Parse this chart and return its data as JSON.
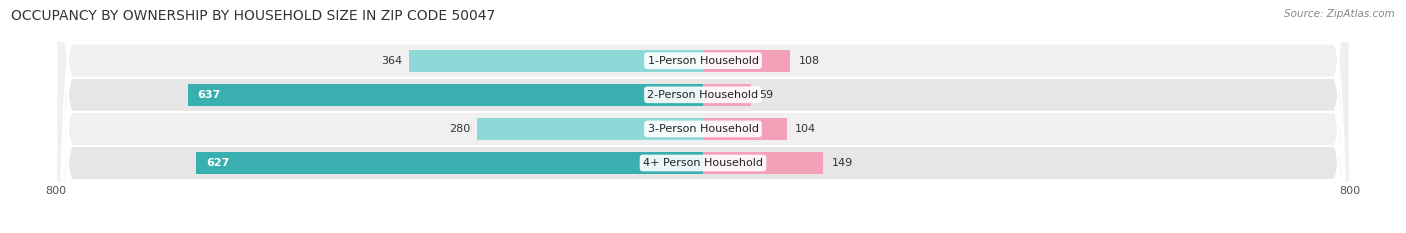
{
  "title": "OCCUPANCY BY OWNERSHIP BY HOUSEHOLD SIZE IN ZIP CODE 50047",
  "source": "Source: ZipAtlas.com",
  "categories": [
    "1-Person Household",
    "2-Person Household",
    "3-Person Household",
    "4+ Person Household"
  ],
  "owner_values": [
    364,
    637,
    280,
    627
  ],
  "renter_values": [
    108,
    59,
    104,
    149
  ],
  "owner_color_dark": "#3AAFAF",
  "owner_color_light": "#8ED8D8",
  "renter_color_dark": "#E8607A",
  "renter_color_light": "#F4A0B8",
  "row_bg_colors": [
    "#F0F0F0",
    "#E6E6E6",
    "#F0F0F0",
    "#E6E6E6"
  ],
  "axis_min": -800,
  "axis_max": 800,
  "title_fontsize": 10,
  "label_fontsize": 8,
  "tick_fontsize": 8,
  "source_fontsize": 7.5,
  "figsize": [
    14.06,
    2.33
  ],
  "dpi": 100,
  "owner_threshold": 400,
  "renter_threshold": 400
}
